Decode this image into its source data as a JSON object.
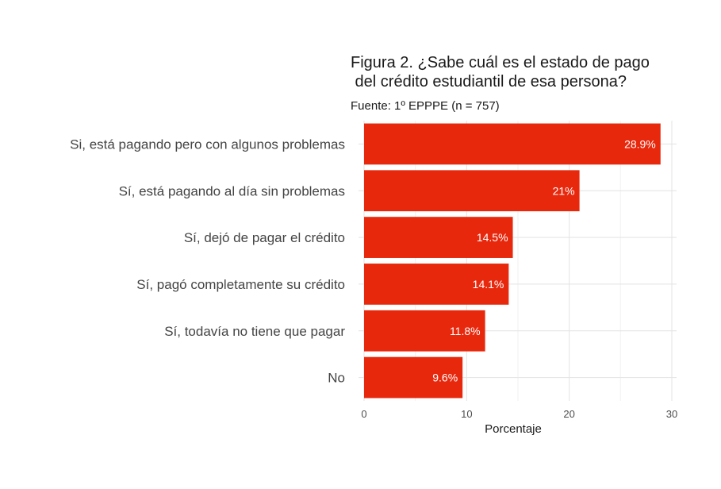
{
  "chart_data": {
    "type": "bar",
    "orientation": "horizontal",
    "title_lines": [
      "Figura 2. ¿Sabe cuál es el estado de pago",
      " del crédito estudiantil de esa persona?"
    ],
    "subtitle": "Fuente: 1º EPPPE (n = 757)",
    "xlabel": "Porcentaje",
    "ylabel": "",
    "xlim": [
      0,
      30
    ],
    "xticks": [
      0,
      10,
      20,
      30
    ],
    "grid": true,
    "bar_color": "#e8280d",
    "categories": [
      "Si, está pagando pero con algunos problemas",
      "Sí, está pagando al día sin problemas",
      "Sí, dejó de pagar el crédito",
      "Sí, pagó completamente su crédito",
      "Sí, todavía no tiene que pagar",
      "No"
    ],
    "values": [
      28.9,
      21,
      14.5,
      14.1,
      11.8,
      9.6
    ],
    "value_labels": [
      "28.9%",
      "21%",
      "14.5%",
      "14.1%",
      "11.8%",
      "9.6%"
    ]
  }
}
